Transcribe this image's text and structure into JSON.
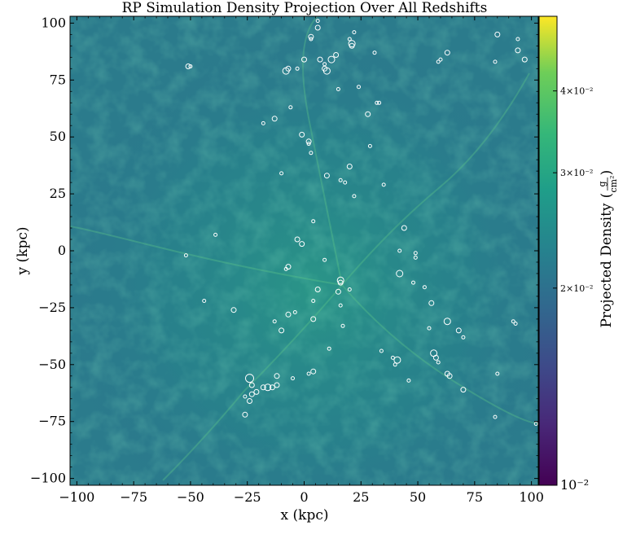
{
  "chart_data": {
    "type": "scatter",
    "title": "RP Simulation Density Projection Over All Redshifts",
    "xlabel": "x  (kpc)",
    "ylabel": "y  (kpc)",
    "xlim": [
      -103,
      103
    ],
    "ylim": [
      -103,
      103
    ],
    "xticks": [
      -100,
      -75,
      -50,
      -25,
      0,
      25,
      50,
      75,
      100
    ],
    "yticks": [
      -100,
      -75,
      -50,
      -25,
      0,
      25,
      50,
      75,
      100
    ],
    "xtick_labels": [
      "−100",
      "−75",
      "−50",
      "−25",
      "0",
      "25",
      "50",
      "75",
      "100"
    ],
    "ytick_labels": [
      "−100",
      "−75",
      "−50",
      "−25",
      "0",
      "25",
      "50",
      "75",
      "100"
    ],
    "background": "density projection image (log color scale, viridis)",
    "marker_style": "open white circles",
    "colorbar": {
      "label": "Projected Density",
      "unit_numerator": "g",
      "unit_denominator": "cm²",
      "scale": "log",
      "range": [
        0.01,
        0.052
      ],
      "ticks": [
        0.01,
        0.02,
        0.03,
        0.04
      ],
      "tick_labels": [
        "10⁻²",
        "2×10⁻²",
        "3×10⁻²",
        "4×10⁻²"
      ],
      "colormap": "viridis"
    },
    "points": [
      {
        "x": 6,
        "y": 101,
        "r": 2
      },
      {
        "x": 6,
        "y": 98,
        "r": 3
      },
      {
        "x": 22,
        "y": 96,
        "r": 2
      },
      {
        "x": 3,
        "y": 94,
        "r": 3
      },
      {
        "x": 3,
        "y": 93,
        "r": 2
      },
      {
        "x": 20,
        "y": 93,
        "r": 2
      },
      {
        "x": 21,
        "y": 91,
        "r": 4
      },
      {
        "x": 21,
        "y": 90,
        "r": 3
      },
      {
        "x": 31,
        "y": 87,
        "r": 2
      },
      {
        "x": 14,
        "y": 86,
        "r": 3
      },
      {
        "x": 12,
        "y": 84,
        "r": 4
      },
      {
        "x": 7,
        "y": 84,
        "r": 3
      },
      {
        "x": 0,
        "y": 84,
        "r": 3
      },
      {
        "x": 9,
        "y": 82,
        "r": 2
      },
      {
        "x": 9,
        "y": 80,
        "r": 3
      },
      {
        "x": 10,
        "y": 79,
        "r": 4
      },
      {
        "x": -8,
        "y": 79,
        "r": 4
      },
      {
        "x": -7,
        "y": 80,
        "r": 3
      },
      {
        "x": -3,
        "y": 80,
        "r": 2
      },
      {
        "x": -51,
        "y": 81,
        "r": 3
      },
      {
        "x": -50,
        "y": 81,
        "r": 2
      },
      {
        "x": 24,
        "y": 72,
        "r": 2
      },
      {
        "x": 15,
        "y": 71,
        "r": 2
      },
      {
        "x": 32,
        "y": 65,
        "r": 2
      },
      {
        "x": 33,
        "y": 65,
        "r": 2
      },
      {
        "x": 28,
        "y": 60,
        "r": 3
      },
      {
        "x": -6,
        "y": 63,
        "r": 2
      },
      {
        "x": -13,
        "y": 58,
        "r": 3
      },
      {
        "x": -18,
        "y": 56,
        "r": 2
      },
      {
        "x": -1,
        "y": 51,
        "r": 3
      },
      {
        "x": 2,
        "y": 48,
        "r": 3
      },
      {
        "x": 2,
        "y": 47,
        "r": 2
      },
      {
        "x": 3,
        "y": 43,
        "r": 2
      },
      {
        "x": 29,
        "y": 46,
        "r": 2
      },
      {
        "x": 20,
        "y": 37,
        "r": 3
      },
      {
        "x": -10,
        "y": 34,
        "r": 2
      },
      {
        "x": 10,
        "y": 33,
        "r": 3
      },
      {
        "x": 16,
        "y": 31,
        "r": 2
      },
      {
        "x": 18,
        "y": 30,
        "r": 2
      },
      {
        "x": 35,
        "y": 29,
        "r": 2
      },
      {
        "x": 22,
        "y": 24,
        "r": 2
      },
      {
        "x": 4,
        "y": 13,
        "r": 2
      },
      {
        "x": 44,
        "y": 10,
        "r": 3
      },
      {
        "x": -39,
        "y": 7,
        "r": 2
      },
      {
        "x": -3,
        "y": 5,
        "r": 3
      },
      {
        "x": -1,
        "y": 3,
        "r": 3
      },
      {
        "x": 42,
        "y": 0,
        "r": 2
      },
      {
        "x": 49,
        "y": -1,
        "r": 2
      },
      {
        "x": -52,
        "y": -2,
        "r": 2
      },
      {
        "x": 49,
        "y": -3,
        "r": 2
      },
      {
        "x": 9,
        "y": -4,
        "r": 2
      },
      {
        "x": -7,
        "y": -7,
        "r": 3
      },
      {
        "x": -8,
        "y": -8,
        "r": 2
      },
      {
        "x": 42,
        "y": -10,
        "r": 4
      },
      {
        "x": 16,
        "y": -13,
        "r": 4
      },
      {
        "x": 16,
        "y": -14,
        "r": 3
      },
      {
        "x": 48,
        "y": -14,
        "r": 2
      },
      {
        "x": 53,
        "y": -16,
        "r": 2
      },
      {
        "x": 6,
        "y": -17,
        "r": 3
      },
      {
        "x": 20,
        "y": -17,
        "r": 2
      },
      {
        "x": 15,
        "y": -18,
        "r": 3
      },
      {
        "x": 4,
        "y": -22,
        "r": 2
      },
      {
        "x": -44,
        "y": -22,
        "r": 2
      },
      {
        "x": 56,
        "y": -23,
        "r": 3
      },
      {
        "x": 16,
        "y": -24,
        "r": 2
      },
      {
        "x": -31,
        "y": -26,
        "r": 3
      },
      {
        "x": -4,
        "y": -27,
        "r": 2
      },
      {
        "x": -7,
        "y": -28,
        "r": 3
      },
      {
        "x": 4,
        "y": -30,
        "r": 3
      },
      {
        "x": -13,
        "y": -31,
        "r": 2
      },
      {
        "x": 63,
        "y": -31,
        "r": 4
      },
      {
        "x": 17,
        "y": -33,
        "r": 2
      },
      {
        "x": 55,
        "y": -34,
        "r": 2
      },
      {
        "x": -10,
        "y": -35,
        "r": 3
      },
      {
        "x": 68,
        "y": -35,
        "r": 3
      },
      {
        "x": 70,
        "y": -38,
        "r": 2
      },
      {
        "x": 11,
        "y": -43,
        "r": 2
      },
      {
        "x": 34,
        "y": -44,
        "r": 2
      },
      {
        "x": 57,
        "y": -45,
        "r": 4
      },
      {
        "x": 58,
        "y": -47,
        "r": 3
      },
      {
        "x": 39,
        "y": -47,
        "r": 2
      },
      {
        "x": 41,
        "y": -48,
        "r": 4
      },
      {
        "x": 59,
        "y": -49,
        "r": 2
      },
      {
        "x": 40,
        "y": -50,
        "r": 2
      },
      {
        "x": 4,
        "y": -53,
        "r": 3
      },
      {
        "x": 2,
        "y": -54,
        "r": 2
      },
      {
        "x": 63,
        "y": -54,
        "r": 3
      },
      {
        "x": 64,
        "y": -55,
        "r": 3
      },
      {
        "x": 85,
        "y": -54,
        "r": 2
      },
      {
        "x": -12,
        "y": -55,
        "r": 3
      },
      {
        "x": -24,
        "y": -56,
        "r": 5
      },
      {
        "x": -5,
        "y": -56,
        "r": 2
      },
      {
        "x": 46,
        "y": -57,
        "r": 2
      },
      {
        "x": -23,
        "y": -59,
        "r": 3
      },
      {
        "x": -16,
        "y": -60,
        "r": 4
      },
      {
        "x": -14,
        "y": -60,
        "r": 3
      },
      {
        "x": -12,
        "y": -59,
        "r": 3
      },
      {
        "x": -18,
        "y": -60,
        "r": 3
      },
      {
        "x": -21,
        "y": -62,
        "r": 3
      },
      {
        "x": -23,
        "y": -63,
        "r": 3
      },
      {
        "x": -26,
        "y": -64,
        "r": 2
      },
      {
        "x": -24,
        "y": -66,
        "r": 3
      },
      {
        "x": 70,
        "y": -61,
        "r": 3
      },
      {
        "x": -26,
        "y": -72,
        "r": 3
      },
      {
        "x": 84,
        "y": -73,
        "r": 2
      },
      {
        "x": 102,
        "y": -76,
        "r": 2
      },
      {
        "x": 85,
        "y": 95,
        "r": 3
      },
      {
        "x": 94,
        "y": 93,
        "r": 2
      },
      {
        "x": 94,
        "y": 88,
        "r": 3
      },
      {
        "x": 97,
        "y": 84,
        "r": 3
      },
      {
        "x": 84,
        "y": 83,
        "r": 2
      },
      {
        "x": 63,
        "y": 87,
        "r": 3
      },
      {
        "x": 60,
        "y": 84,
        "r": 2
      },
      {
        "x": 59,
        "y": 83,
        "r": 2
      },
      {
        "x": 92,
        "y": -31,
        "r": 2
      },
      {
        "x": 93,
        "y": -32,
        "r": 2
      }
    ]
  }
}
